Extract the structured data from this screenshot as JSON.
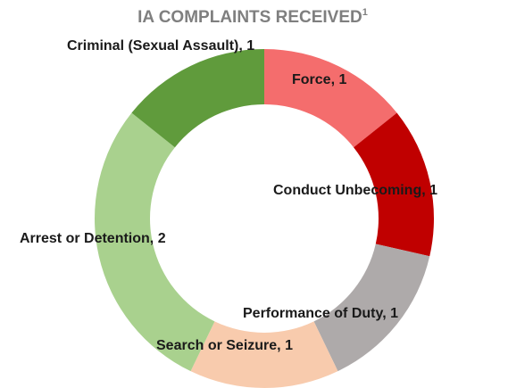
{
  "chart_data": {
    "type": "donut",
    "title": "IA COMPLAINTS RECEIVED",
    "title_footnote": "1",
    "categories": [
      "Force",
      "Conduct Unbecoming",
      "Performance of Duty",
      "Search or Seizure",
      "Arrest or Detention",
      "Criminal (Sexual Assault)"
    ],
    "values": [
      1,
      1,
      1,
      1,
      2,
      1
    ],
    "colors": [
      "#f46d6d",
      "#c00000",
      "#aeaaaa",
      "#f8cbad",
      "#a9d18e",
      "#609b3c"
    ],
    "label_separator": ", "
  }
}
